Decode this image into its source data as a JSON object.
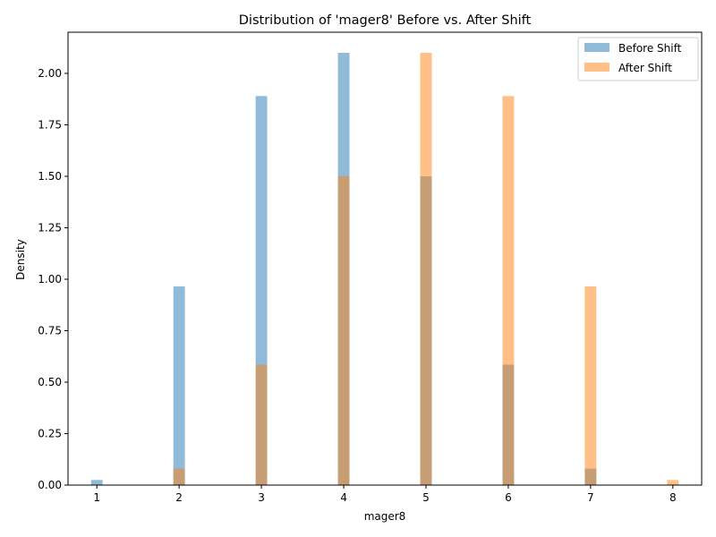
{
  "chart_data": {
    "type": "bar",
    "title": "Distribution of 'mager8' Before vs. After Shift",
    "xlabel": "mager8",
    "ylabel": "Density",
    "xlim": [
      0.65,
      8.35
    ],
    "ylim": [
      0,
      2.2
    ],
    "x_ticks": [
      1,
      2,
      3,
      4,
      5,
      6,
      7,
      8
    ],
    "y_ticks": [
      0.0,
      0.25,
      0.5,
      0.75,
      1.0,
      1.25,
      1.5,
      1.75,
      2.0
    ],
    "y_tick_labels": [
      "0.00",
      "0.25",
      "0.50",
      "0.75",
      "1.00",
      "1.25",
      "1.50",
      "1.75",
      "2.00"
    ],
    "x_tick_labels": [
      "1",
      "2",
      "3",
      "4",
      "5",
      "6",
      "7",
      "8"
    ],
    "bar_width": 0.14,
    "opacity": 0.5,
    "legend_position": "top-right",
    "series": [
      {
        "name": "Before Shift",
        "color": "#1f77b4",
        "x": [
          1,
          2,
          3,
          4,
          5,
          6,
          7,
          8
        ],
        "values": [
          0.025,
          0.965,
          1.89,
          2.1,
          1.5,
          0.585,
          0.08,
          0.0
        ]
      },
      {
        "name": "After Shift",
        "color": "#ff7f0e",
        "x": [
          1,
          2,
          3,
          4,
          5,
          6,
          7,
          8
        ],
        "values": [
          0.0,
          0.08,
          0.585,
          1.5,
          2.1,
          1.89,
          0.965,
          0.025
        ]
      }
    ]
  }
}
